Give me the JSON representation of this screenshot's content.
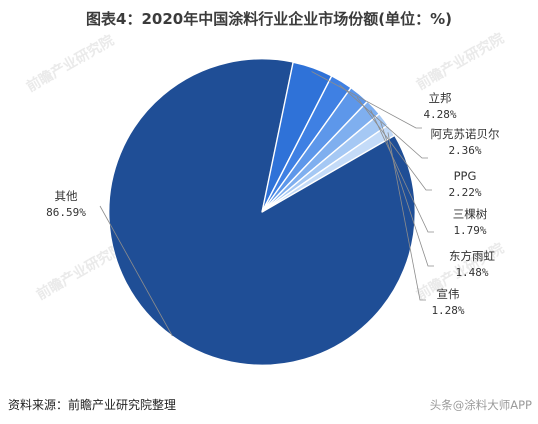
{
  "title": "图表4：2020年中国涂料行业企业市场份额(单位：%)",
  "source": "资料来源：前瞻产业研究院整理",
  "footer_watermark": "头条@涂料大师APP",
  "watermark_text": "前瞻产业研究院",
  "colors": {
    "main": "#1f4e96",
    "slices": [
      "#2f72d8",
      "#3f80e3",
      "#5d97ea",
      "#7fafef",
      "#a5c8f4",
      "#c4dbf8"
    ],
    "edge": "#ffffff",
    "leader": "#8c8c8c"
  },
  "chart_data": {
    "type": "pie",
    "title": "图表4：2020年中国涂料行业企业市场份额(单位：%)",
    "unit": "%",
    "slices": [
      {
        "label": "其他",
        "value": 86.59,
        "display": "86.59%"
      },
      {
        "label": "立邦",
        "value": 4.28,
        "display": "4.28%"
      },
      {
        "label": "阿克苏诺贝尔",
        "value": 2.36,
        "display": "2.36%"
      },
      {
        "label": "PPG",
        "value": 2.22,
        "display": "2.22%"
      },
      {
        "label": "三棵树",
        "value": 1.79,
        "display": "1.79%"
      },
      {
        "label": "东方雨虹",
        "value": 1.48,
        "display": "1.48%"
      },
      {
        "label": "宣伟",
        "value": 1.28,
        "display": "1.28%"
      }
    ]
  }
}
